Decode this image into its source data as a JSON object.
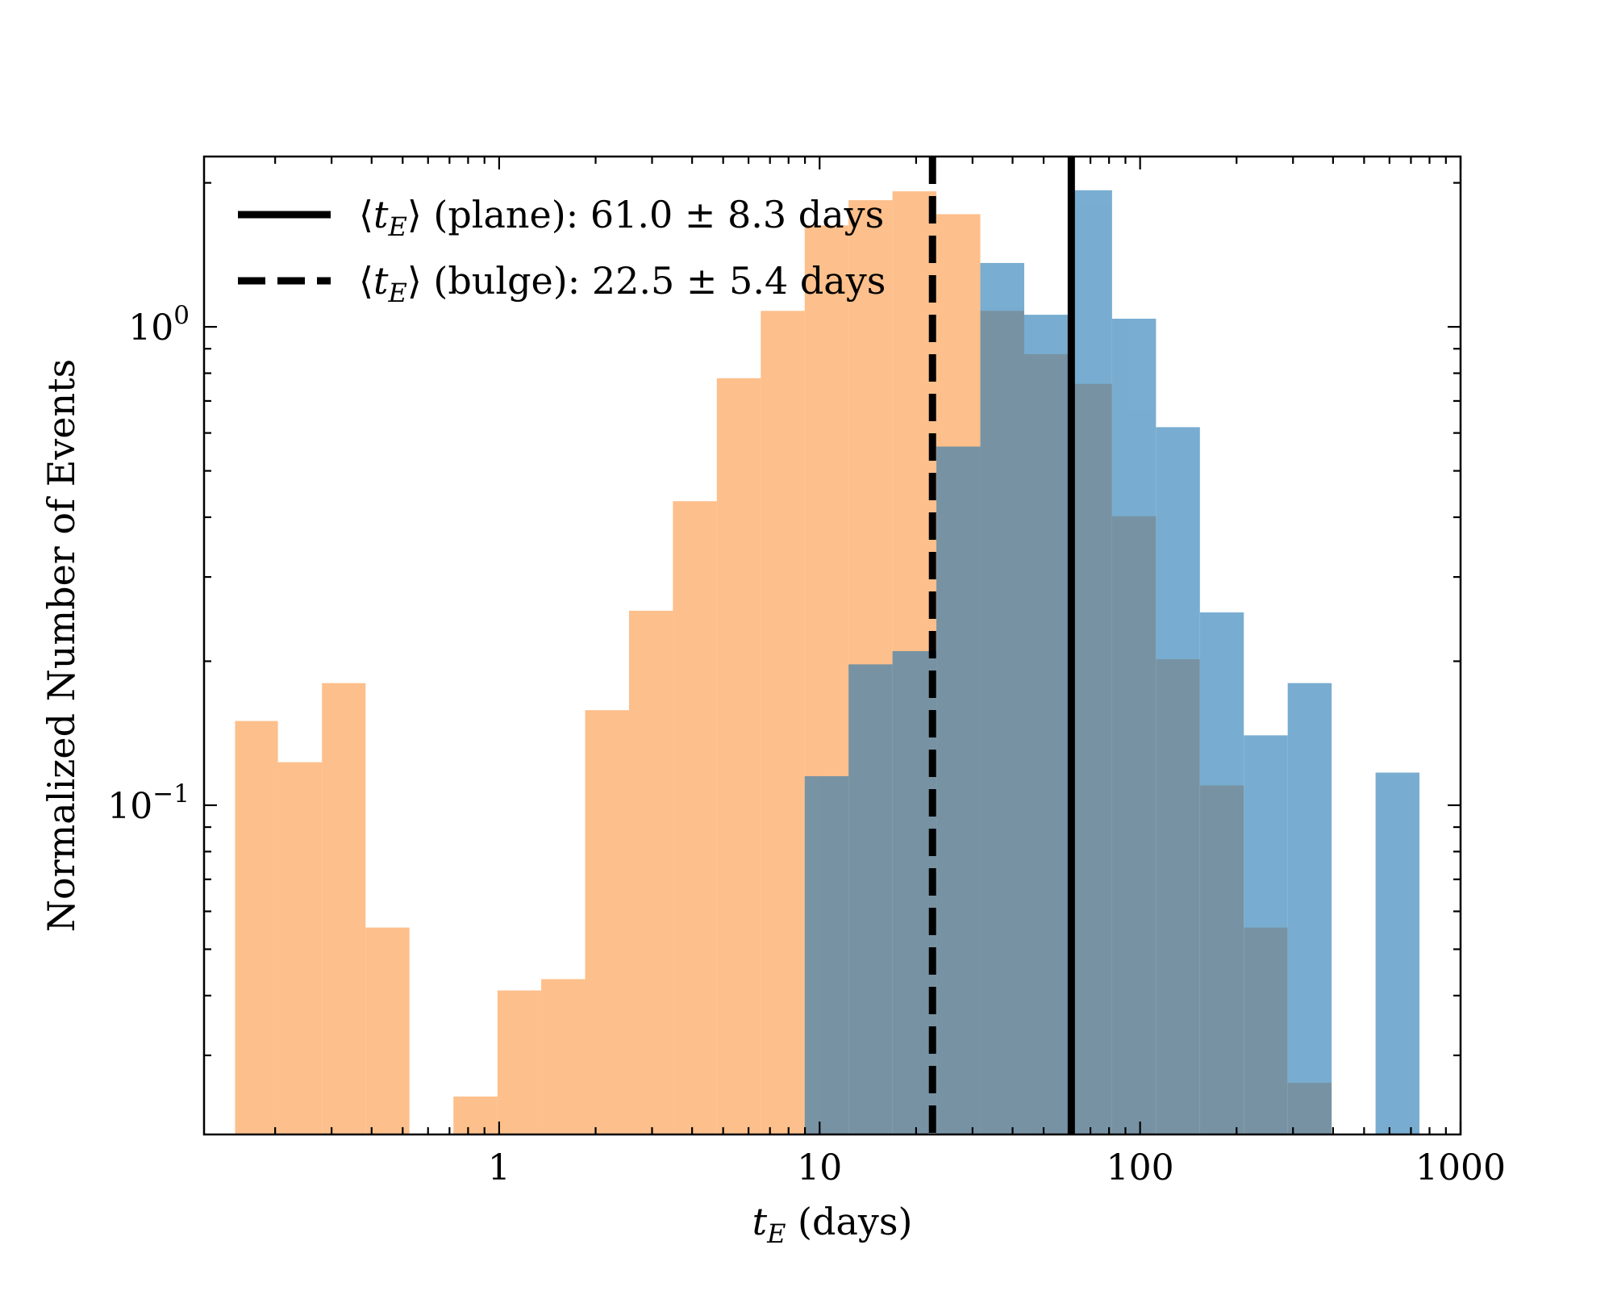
{
  "chart_data": {
    "type": "histogram",
    "xlabel": "t_E (days)",
    "xlabel_main": "t",
    "xlabel_sub": "E",
    "xlabel_rest": " (days)",
    "ylabel": "Normalized Number of Events",
    "xscale": "log",
    "yscale": "log",
    "xlim": [
      0.12,
      1000
    ],
    "ylim": [
      0.0205,
      2.27
    ],
    "x_ticks": [
      {
        "value": 1,
        "label": "1"
      },
      {
        "value": 10,
        "label": "10"
      },
      {
        "value": 100,
        "label": "100"
      },
      {
        "value": 1000,
        "label": "1000"
      }
    ],
    "y_ticks": [
      {
        "value": 1,
        "base": "10",
        "exp": "0"
      },
      {
        "value": 0.1,
        "base": "10",
        "exp": "−1"
      }
    ],
    "series": [
      {
        "color": "#fdbf8b",
        "opacity": 1,
        "bins": [
          {
            "x0": 0.15,
            "x1": 0.204,
            "y": 0.15
          },
          {
            "x0": 0.204,
            "x1": 0.28,
            "y": 0.123
          },
          {
            "x0": 0.28,
            "x1": 0.383,
            "y": 0.18
          },
          {
            "x0": 0.383,
            "x1": 0.525,
            "y": 0.0555
          },
          {
            "x0": 0.525,
            "x1": 0.72,
            "y": 0
          },
          {
            "x0": 0.72,
            "x1": 0.988,
            "y": 0.0246
          },
          {
            "x0": 0.988,
            "x1": 1.353,
            "y": 0.041
          },
          {
            "x0": 1.353,
            "x1": 1.855,
            "y": 0.0433
          },
          {
            "x0": 1.855,
            "x1": 2.543,
            "y": 0.158
          },
          {
            "x0": 2.543,
            "x1": 3.486,
            "y": 0.255
          },
          {
            "x0": 3.486,
            "x1": 4.779,
            "y": 0.432
          },
          {
            "x0": 4.779,
            "x1": 6.552,
            "y": 0.781
          },
          {
            "x0": 6.552,
            "x1": 8.983,
            "y": 1.08
          },
          {
            "x0": 8.983,
            "x1": 12.31,
            "y": 1.63
          },
          {
            "x0": 12.31,
            "x1": 16.88,
            "y": 1.84
          },
          {
            "x0": 16.88,
            "x1": 23.14,
            "y": 1.92
          },
          {
            "x0": 23.14,
            "x1": 31.73,
            "y": 1.72
          },
          {
            "x0": 31.73,
            "x1": 43.5,
            "y": 1.08
          },
          {
            "x0": 43.5,
            "x1": 59.63,
            "y": 0.877
          },
          {
            "x0": 59.63,
            "x1": 81.75,
            "y": 0.76
          },
          {
            "x0": 81.75,
            "x1": 112.1,
            "y": 0.402
          },
          {
            "x0": 112.1,
            "x1": 153.7,
            "y": 0.202
          },
          {
            "x0": 153.7,
            "x1": 210.7,
            "y": 0.11
          },
          {
            "x0": 210.7,
            "x1": 288.8,
            "y": 0.0555
          },
          {
            "x0": 288.8,
            "x1": 396.0,
            "y": 0.0263
          }
        ]
      },
      {
        "color": "#1f77b4",
        "opacity": 0.6,
        "bins": [
          {
            "x0": 8.983,
            "x1": 12.31,
            "y": 0.115
          },
          {
            "x0": 12.31,
            "x1": 16.88,
            "y": 0.197
          },
          {
            "x0": 16.88,
            "x1": 23.14,
            "y": 0.21
          },
          {
            "x0": 23.14,
            "x1": 31.73,
            "y": 0.562
          },
          {
            "x0": 31.73,
            "x1": 43.5,
            "y": 1.36
          },
          {
            "x0": 43.5,
            "x1": 59.63,
            "y": 1.06
          },
          {
            "x0": 59.63,
            "x1": 81.75,
            "y": 1.93
          },
          {
            "x0": 81.75,
            "x1": 112.1,
            "y": 1.04
          },
          {
            "x0": 112.1,
            "x1": 153.7,
            "y": 0.617
          },
          {
            "x0": 153.7,
            "x1": 210.7,
            "y": 0.253
          },
          {
            "x0": 210.7,
            "x1": 288.8,
            "y": 0.14
          },
          {
            "x0": 288.8,
            "x1": 396.0,
            "y": 0.18
          },
          {
            "x0": 396.0,
            "x1": 542.9,
            "y": 0
          },
          {
            "x0": 542.9,
            "x1": 744.3,
            "y": 0.117
          }
        ]
      }
    ],
    "vlines": [
      {
        "x": 61.0,
        "style": "solid",
        "color": "#000000"
      },
      {
        "x": 22.5,
        "style": "dashed",
        "color": "#000000"
      }
    ],
    "legend": {
      "location": "upper-left",
      "entries": [
        {
          "style": "solid",
          "mean_open": "⟨",
          "t": "t",
          "sub": "E",
          "mean_close": "⟩",
          "text": " (plane): 61.0 ± 8.3 days"
        },
        {
          "style": "dashed",
          "mean_open": "⟨",
          "t": "t",
          "sub": "E",
          "mean_close": "⟩",
          "text": " (bulge): 22.5 ± 5.4 days"
        }
      ]
    }
  }
}
